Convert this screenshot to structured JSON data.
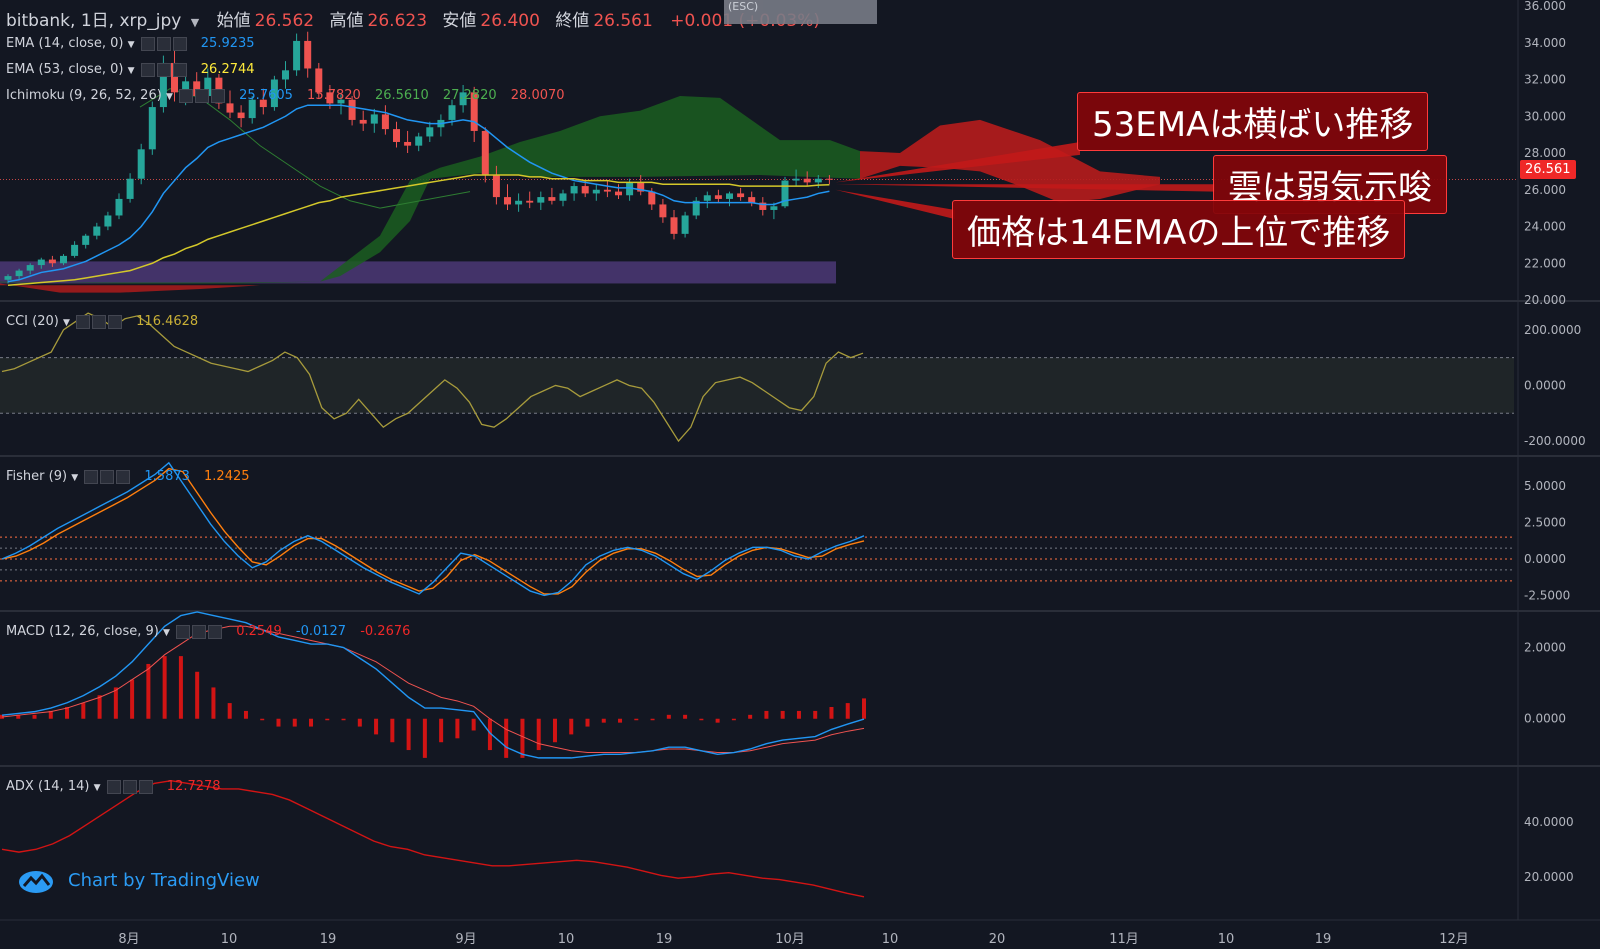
{
  "header": {
    "symbol": "bitbank, 1日, xrp_jpy",
    "open_label": "始値",
    "open": "26.562",
    "high_label": "高値",
    "high": "26.623",
    "low_label": "安値",
    "low": "26.400",
    "close_label": "終値",
    "close": "26.561",
    "change": "+0.001 (+0.03%)"
  },
  "tooltip": "(ESC)",
  "indicators": {
    "ema14": {
      "label": "EMA (14, close, 0)",
      "value": "25.9235",
      "color": "#2196f3"
    },
    "ema53": {
      "label": "EMA (53, close, 0)",
      "value": "26.2744",
      "color": "#ffeb3b"
    },
    "ichimoku": {
      "label": "Ichimoku (9, 26, 52, 26)",
      "v1": "25.7605",
      "v2": "15.7820",
      "v3": "26.5610",
      "v4": "27.2820",
      "v5": "28.0070"
    },
    "cci": {
      "label": "CCI (20)",
      "value": "116.4628"
    },
    "fisher": {
      "label": "Fisher (9)",
      "v1": "1.5873",
      "v2": "1.2425"
    },
    "macd": {
      "label": "MACD (12, 26, close, 9)",
      "v1": "0.2549",
      "v2": "-0.0127",
      "v3": "-0.2676"
    },
    "adx": {
      "label": "ADX (14, 14)",
      "value": "12.7278"
    }
  },
  "annotations": {
    "a1": "53EMAは横ばい推移",
    "a2": "雲は弱気示唆",
    "a3": "価格は14EMAの上位で推移"
  },
  "price_tag": "26.561",
  "watermark": "Chart by TradingView",
  "colors": {
    "up": "#26a69a",
    "down": "#ef5350",
    "cloud_bull": "#1b5e20",
    "cloud_bear": "#b71c1c"
  },
  "chart_data": [
    {
      "type": "candlestick",
      "axis": {
        "ylim": [
          20,
          36
        ],
        "ticks": [
          "20.000",
          "22.000",
          "24.000",
          "26.000",
          "28.000",
          "30.000",
          "32.000",
          "34.000",
          "36.000"
        ]
      },
      "x_ticks": [
        "8月",
        "10",
        "19",
        "9月",
        "10",
        "19",
        "10月",
        "10",
        "20",
        "11月",
        "10",
        "19",
        "12月"
      ],
      "candles": [
        [
          21.1,
          21.4,
          20.9,
          21.3
        ],
        [
          21.3,
          21.7,
          21.1,
          21.6
        ],
        [
          21.6,
          22.0,
          21.4,
          21.9
        ],
        [
          21.9,
          22.3,
          21.7,
          22.2
        ],
        [
          22.2,
          22.4,
          21.8,
          22.0
        ],
        [
          22.0,
          22.5,
          21.9,
          22.4
        ],
        [
          22.4,
          23.2,
          22.3,
          23.0
        ],
        [
          23.0,
          23.6,
          22.8,
          23.5
        ],
        [
          23.5,
          24.2,
          23.3,
          24.0
        ],
        [
          24.0,
          24.8,
          23.8,
          24.6
        ],
        [
          24.6,
          25.8,
          24.4,
          25.5
        ],
        [
          25.5,
          26.9,
          25.3,
          26.6
        ],
        [
          26.6,
          28.5,
          26.3,
          28.2
        ],
        [
          28.2,
          30.8,
          27.9,
          30.5
        ],
        [
          30.5,
          33.3,
          30.2,
          32.9
        ],
        [
          32.9,
          33.6,
          30.8,
          31.3
        ],
        [
          31.3,
          32.3,
          30.6,
          31.9
        ],
        [
          31.9,
          32.4,
          30.8,
          31.1
        ],
        [
          31.1,
          32.6,
          30.7,
          32.1
        ],
        [
          32.1,
          32.3,
          30.4,
          30.7
        ],
        [
          30.7,
          31.4,
          29.9,
          30.2
        ],
        [
          30.2,
          30.6,
          29.4,
          29.9
        ],
        [
          29.9,
          31.1,
          29.6,
          30.9
        ],
        [
          30.9,
          31.5,
          30.1,
          30.5
        ],
        [
          30.5,
          32.2,
          30.3,
          32.0
        ],
        [
          32.0,
          33.0,
          31.5,
          32.5
        ],
        [
          32.5,
          34.5,
          32.2,
          34.1
        ],
        [
          34.1,
          34.6,
          32.1,
          32.6
        ],
        [
          32.6,
          32.9,
          31.0,
          31.3
        ],
        [
          31.3,
          31.7,
          30.4,
          30.7
        ],
        [
          30.7,
          31.2,
          30.1,
          30.9
        ],
        [
          30.9,
          31.1,
          29.5,
          29.8
        ],
        [
          29.8,
          30.3,
          29.2,
          29.6
        ],
        [
          29.6,
          30.4,
          29.1,
          30.1
        ],
        [
          30.1,
          30.6,
          29.0,
          29.3
        ],
        [
          29.3,
          29.7,
          28.3,
          28.6
        ],
        [
          28.6,
          29.2,
          28.0,
          28.4
        ],
        [
          28.4,
          29.1,
          28.1,
          28.9
        ],
        [
          28.9,
          29.7,
          28.6,
          29.4
        ],
        [
          29.4,
          30.1,
          28.9,
          29.8
        ],
        [
          29.8,
          30.9,
          29.5,
          30.6
        ],
        [
          30.6,
          31.7,
          30.2,
          31.3
        ],
        [
          31.3,
          31.6,
          28.6,
          29.2
        ],
        [
          29.2,
          29.4,
          26.4,
          26.8
        ],
        [
          26.8,
          27.3,
          25.2,
          25.6
        ],
        [
          25.6,
          26.3,
          24.9,
          25.2
        ],
        [
          25.2,
          25.8,
          24.8,
          25.4
        ],
        [
          25.4,
          25.9,
          25.0,
          25.3
        ],
        [
          25.3,
          25.9,
          24.9,
          25.6
        ],
        [
          25.6,
          26.1,
          25.2,
          25.4
        ],
        [
          25.4,
          26.0,
          25.1,
          25.8
        ],
        [
          25.8,
          26.4,
          25.4,
          26.2
        ],
        [
          26.2,
          26.5,
          25.6,
          25.8
        ],
        [
          25.8,
          26.3,
          25.4,
          26.0
        ],
        [
          26.0,
          26.5,
          25.6,
          25.9
        ],
        [
          25.9,
          26.3,
          25.5,
          25.7
        ],
        [
          25.7,
          26.6,
          25.4,
          26.4
        ],
        [
          26.4,
          26.8,
          25.7,
          25.9
        ],
        [
          25.9,
          26.1,
          24.9,
          25.2
        ],
        [
          25.2,
          25.5,
          24.2,
          24.5
        ],
        [
          24.5,
          24.9,
          23.3,
          23.6
        ],
        [
          23.6,
          24.8,
          23.4,
          24.6
        ],
        [
          24.6,
          25.6,
          24.4,
          25.4
        ],
        [
          25.4,
          25.9,
          25.0,
          25.7
        ],
        [
          25.7,
          26.0,
          25.3,
          25.5
        ],
        [
          25.5,
          25.9,
          25.1,
          25.8
        ],
        [
          25.8,
          26.1,
          25.4,
          25.6
        ],
        [
          25.6,
          25.9,
          25.1,
          25.3
        ],
        [
          25.3,
          25.6,
          24.6,
          24.9
        ],
        [
          24.9,
          25.3,
          24.4,
          25.1
        ],
        [
          25.1,
          26.7,
          25.0,
          26.5
        ],
        [
          26.5,
          27.1,
          26.2,
          26.6
        ],
        [
          26.6,
          27.0,
          26.2,
          26.4
        ],
        [
          26.4,
          26.8,
          26.1,
          26.6
        ],
        [
          26.6,
          26.8,
          26.3,
          26.56
        ]
      ],
      "ema14": [
        21.0,
        21.1,
        21.3,
        21.5,
        21.6,
        21.7,
        21.9,
        22.1,
        22.4,
        22.7,
        23.0,
        23.4,
        24.0,
        24.8,
        25.8,
        26.5,
        27.2,
        27.7,
        28.3,
        28.6,
        28.8,
        29.0,
        29.2,
        29.4,
        29.7,
        30.0,
        30.4,
        30.6,
        30.6,
        30.6,
        30.6,
        30.5,
        30.4,
        30.3,
        30.2,
        30.0,
        29.8,
        29.7,
        29.6,
        29.6,
        29.7,
        29.8,
        29.7,
        29.3,
        28.8,
        28.3,
        27.9,
        27.5,
        27.2,
        26.9,
        26.7,
        26.5,
        26.4,
        26.3,
        26.2,
        26.1,
        26.1,
        26.0,
        25.9,
        25.7,
        25.4,
        25.3,
        25.3,
        25.3,
        25.3,
        25.3,
        25.3,
        25.3,
        25.2,
        25.2,
        25.4,
        25.5,
        25.6,
        25.8,
        25.92
      ],
      "ema53": [
        20.8,
        20.85,
        20.9,
        20.95,
        21.0,
        21.05,
        21.1,
        21.2,
        21.3,
        21.4,
        21.5,
        21.6,
        21.8,
        22.0,
        22.3,
        22.5,
        22.8,
        23.0,
        23.3,
        23.5,
        23.7,
        23.9,
        24.1,
        24.3,
        24.5,
        24.7,
        24.9,
        25.1,
        25.3,
        25.4,
        25.6,
        25.7,
        25.8,
        25.9,
        26.0,
        26.1,
        26.2,
        26.3,
        26.4,
        26.5,
        26.6,
        26.7,
        26.8,
        26.8,
        26.8,
        26.8,
        26.8,
        26.7,
        26.7,
        26.6,
        26.6,
        26.6,
        26.5,
        26.5,
        26.5,
        26.4,
        26.4,
        26.4,
        26.4,
        26.3,
        26.3,
        26.3,
        26.3,
        26.3,
        26.3,
        26.3,
        26.2,
        26.2,
        26.2,
        26.2,
        26.2,
        26.2,
        26.2,
        26.25,
        26.27
      ]
    },
    {
      "type": "line",
      "name": "CCI",
      "ylim": [
        -250,
        300
      ],
      "ticks": [
        "-200.0000",
        "0.0000",
        "200.0000"
      ],
      "bands": [
        100,
        -100
      ],
      "values": [
        50,
        60,
        80,
        100,
        120,
        200,
        230,
        260,
        240,
        210,
        240,
        250,
        220,
        180,
        140,
        120,
        100,
        80,
        70,
        60,
        50,
        70,
        90,
        120,
        100,
        40,
        -80,
        -120,
        -100,
        -50,
        -100,
        -150,
        -120,
        -100,
        -60,
        -20,
        20,
        -10,
        -60,
        -140,
        -150,
        -120,
        -80,
        -40,
        -20,
        0,
        -10,
        -40,
        -20,
        0,
        20,
        0,
        -10,
        -60,
        -130,
        -200,
        -150,
        -40,
        10,
        20,
        30,
        10,
        -20,
        -50,
        -80,
        -90,
        -40,
        80,
        120,
        100,
        116
      ]
    },
    {
      "type": "line",
      "name": "Fisher",
      "ylim": [
        -3.5,
        7
      ],
      "ticks": [
        "-2.5000",
        "0.0000",
        "2.5000",
        "5.0000"
      ],
      "bands": [
        1.5,
        0.75,
        0,
        -0.75,
        -1.5
      ],
      "values": [
        0,
        0.4,
        0.9,
        1.5,
        2.1,
        2.6,
        3.1,
        3.6,
        4.1,
        4.6,
        5.2,
        5.8,
        6.6,
        5.2,
        3.8,
        2.4,
        1.2,
        0.2,
        -0.6,
        -0.2,
        0.6,
        1.2,
        1.6,
        1.2,
        0.6,
        0,
        -0.6,
        -1.1,
        -1.6,
        -2.0,
        -2.4,
        -1.6,
        -0.6,
        0.4,
        0.2,
        -0.4,
        -1.0,
        -1.6,
        -2.2,
        -2.5,
        -2.3,
        -1.5,
        -0.4,
        0.2,
        0.6,
        0.8,
        0.6,
        0.2,
        -0.4,
        -1.0,
        -1.4,
        -0.8,
        -0.1,
        0.4,
        0.8,
        0.8,
        0.6,
        0.2,
        0,
        0.5,
        0.9,
        1.2,
        1.59
      ],
      "signal": [
        0,
        0.2,
        0.6,
        1.1,
        1.7,
        2.2,
        2.7,
        3.2,
        3.7,
        4.2,
        4.8,
        5.4,
        6.2,
        6.0,
        4.6,
        3.2,
        1.9,
        0.8,
        -0.2,
        -0.4,
        0.2,
        0.9,
        1.4,
        1.4,
        0.9,
        0.3,
        -0.3,
        -0.9,
        -1.4,
        -1.8,
        -2.2,
        -2.0,
        -1.2,
        -0.1,
        0.3,
        -0.1,
        -0.7,
        -1.3,
        -1.9,
        -2.4,
        -2.4,
        -1.9,
        -0.9,
        -0.1,
        0.4,
        0.7,
        0.7,
        0.4,
        -0.1,
        -0.7,
        -1.2,
        -1.1,
        -0.4,
        0.2,
        0.6,
        0.8,
        0.7,
        0.4,
        0.1,
        0.2,
        0.7,
        1.0,
        1.24
      ]
    },
    {
      "type": "line+bar",
      "name": "MACD",
      "ylim": [
        -1.3,
        3.0
      ],
      "ticks": [
        "0.0000",
        "2.0000"
      ],
      "macd": [
        0.1,
        0.15,
        0.2,
        0.3,
        0.45,
        0.65,
        0.9,
        1.2,
        1.6,
        2.1,
        2.6,
        2.9,
        3.0,
        2.9,
        2.8,
        2.7,
        2.5,
        2.3,
        2.2,
        2.1,
        2.1,
        2.0,
        1.7,
        1.4,
        1.0,
        0.6,
        0.3,
        0.3,
        0.25,
        0.2,
        -0.4,
        -0.8,
        -1.0,
        -1.1,
        -1.1,
        -1.1,
        -1.05,
        -1.0,
        -1.0,
        -0.95,
        -0.9,
        -0.8,
        -0.8,
        -0.9,
        -1.0,
        -0.95,
        -0.85,
        -0.7,
        -0.6,
        -0.55,
        -0.5,
        -0.3,
        -0.15,
        -0.01
      ],
      "signal": [
        0.05,
        0.1,
        0.15,
        0.2,
        0.3,
        0.45,
        0.6,
        0.8,
        1.1,
        1.4,
        1.8,
        2.1,
        2.4,
        2.5,
        2.6,
        2.6,
        2.5,
        2.4,
        2.3,
        2.2,
        2.1,
        2.0,
        1.8,
        1.6,
        1.3,
        1.0,
        0.8,
        0.6,
        0.5,
        0.35,
        0.0,
        -0.3,
        -0.5,
        -0.7,
        -0.8,
        -0.9,
        -0.95,
        -0.95,
        -0.95,
        -0.95,
        -0.9,
        -0.85,
        -0.85,
        -0.9,
        -0.95,
        -0.95,
        -0.9,
        -0.8,
        -0.7,
        -0.65,
        -0.6,
        -0.45,
        -0.35,
        -0.27
      ]
    },
    {
      "type": "line",
      "name": "ADX",
      "ylim": [
        5,
        60
      ],
      "ticks": [
        "20.0000",
        "40.0000"
      ],
      "values": [
        30,
        29,
        30,
        32,
        35,
        39,
        43,
        47,
        51,
        54,
        55,
        54,
        53,
        52,
        52,
        51,
        50,
        48,
        45,
        42,
        39,
        36,
        33,
        31,
        30,
        28,
        27,
        26,
        25,
        24,
        24,
        24.5,
        25,
        25.5,
        26,
        25.5,
        24.5,
        23.5,
        22,
        20.5,
        19.5,
        20,
        21,
        21.5,
        20.5,
        19.5,
        19,
        18,
        17,
        15.5,
        14,
        12.7
      ]
    }
  ]
}
